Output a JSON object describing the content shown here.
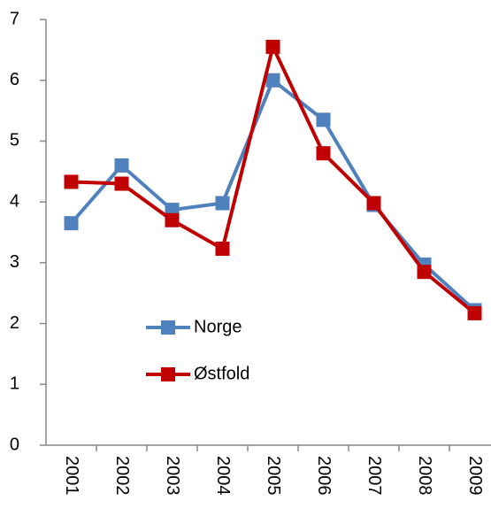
{
  "chart_data": {
    "type": "line",
    "categories": [
      "2001",
      "2002",
      "2003",
      "2004",
      "2005",
      "2006",
      "2007",
      "2008",
      "2009"
    ],
    "series": [
      {
        "name": "Norge",
        "color": "#4f81bd",
        "values": [
          3.65,
          4.6,
          3.87,
          3.98,
          6.0,
          5.35,
          3.95,
          2.97,
          2.22
        ]
      },
      {
        "name": "Østfold",
        "color": "#c00000",
        "values": [
          4.33,
          4.3,
          3.7,
          3.23,
          6.55,
          4.8,
          3.98,
          2.85,
          2.17
        ]
      }
    ],
    "ylim": [
      0,
      7
    ],
    "yticks": [
      0,
      1,
      2,
      3,
      4,
      5,
      6,
      7
    ],
    "grid": false,
    "legend": "inside"
  }
}
